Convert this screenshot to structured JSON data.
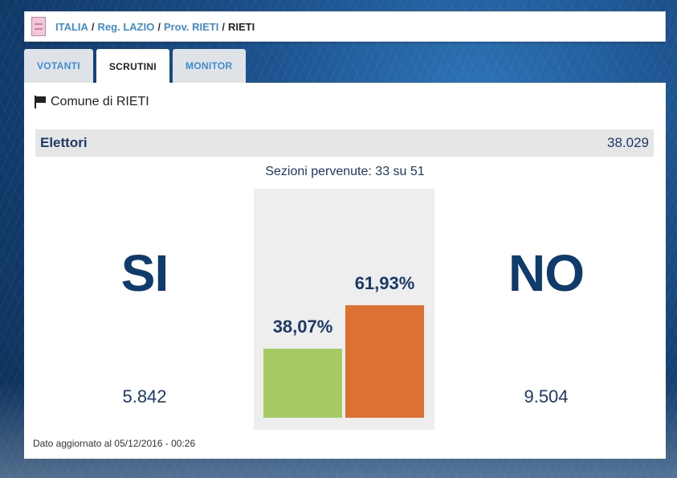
{
  "breadcrumb": {
    "items": [
      "ITALIA",
      "Reg. LAZIO",
      "Prov. RIETI"
    ],
    "current": "RIETI",
    "separator": "/"
  },
  "tabs": [
    {
      "label": "VOTANTI",
      "active": false
    },
    {
      "label": "SCRUTINI",
      "active": true
    },
    {
      "label": "MONITOR",
      "active": false
    }
  ],
  "panel": {
    "comune": "Comune di RIETI",
    "elettori_label": "Elettori",
    "elettori_value": "38.029",
    "sezioni": "Sezioni pervenute: 33 su 51",
    "si_label": "SI",
    "no_label": "NO",
    "si_votes": "5.842",
    "no_votes": "9.504",
    "updated": "Dato aggiornato al 05/12/2016 - 00:26"
  },
  "chart_data": {
    "type": "bar",
    "categories": [
      "SI",
      "NO"
    ],
    "values": [
      38.07,
      61.93
    ],
    "labels": [
      "38,07%",
      "61,93%"
    ],
    "colors": [
      "#a5c963",
      "#dd7033"
    ],
    "ylim": [
      0,
      100
    ]
  }
}
